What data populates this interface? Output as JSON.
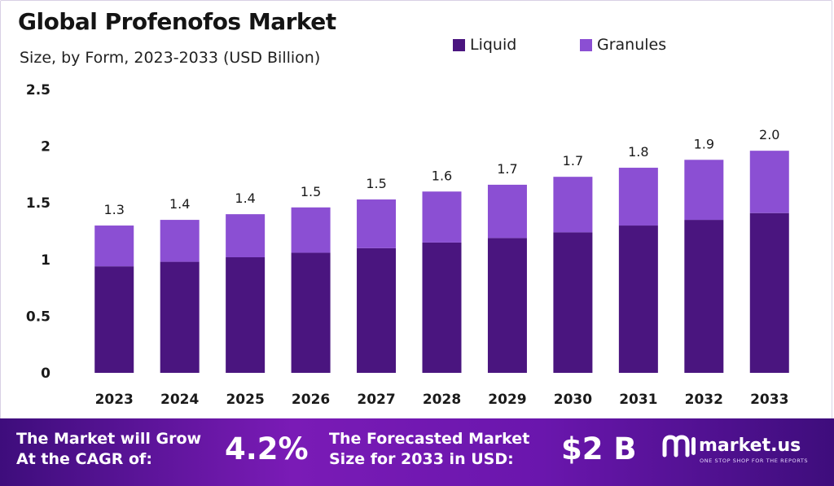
{
  "title": "Global Profenofos Market",
  "subtitle": "Size, by Form, 2023-2033 (USD Billion)",
  "colors": {
    "liquid": "#4a157f",
    "granules": "#8b4fd3",
    "banner": "#6a16ad"
  },
  "chart_data": {
    "type": "bar",
    "stacked": true,
    "title": "Global Profenofos Market",
    "subtitle": "Size, by Form, 2023-2033 (USD Billion)",
    "categories": [
      "2023",
      "2024",
      "2025",
      "2026",
      "2027",
      "2028",
      "2029",
      "2030",
      "2031",
      "2032",
      "2033"
    ],
    "series": [
      {
        "name": "Liquid",
        "color": "#4a157f",
        "values": [
          0.94,
          0.98,
          1.02,
          1.06,
          1.1,
          1.15,
          1.19,
          1.24,
          1.3,
          1.35,
          1.41
        ]
      },
      {
        "name": "Granules",
        "color": "#8b4fd3",
        "values": [
          0.36,
          0.37,
          0.38,
          0.4,
          0.43,
          0.45,
          0.47,
          0.49,
          0.51,
          0.53,
          0.55
        ]
      }
    ],
    "totals": [
      "1.3",
      "1.4",
      "1.4",
      "1.5",
      "1.5",
      "1.6",
      "1.7",
      "1.7",
      "1.8",
      "1.9",
      "2.0"
    ],
    "yticks": [
      "0",
      "0.5",
      "1",
      "1.5",
      "2",
      "2.5"
    ],
    "ylim": [
      0,
      2.5
    ],
    "legend_position": "top-right",
    "grid": false
  },
  "banner": {
    "cagr_line1": "The Market will Grow",
    "cagr_line2": "At the CAGR of:",
    "cagr_value": "4.2%",
    "forecast_line1": "The Forecasted Market",
    "forecast_line2": "Size for 2033 in USD:",
    "forecast_value": "$2 B",
    "brand_name": "market.us",
    "brand_tagline": "ONE STOP SHOP FOR THE REPORTS"
  }
}
